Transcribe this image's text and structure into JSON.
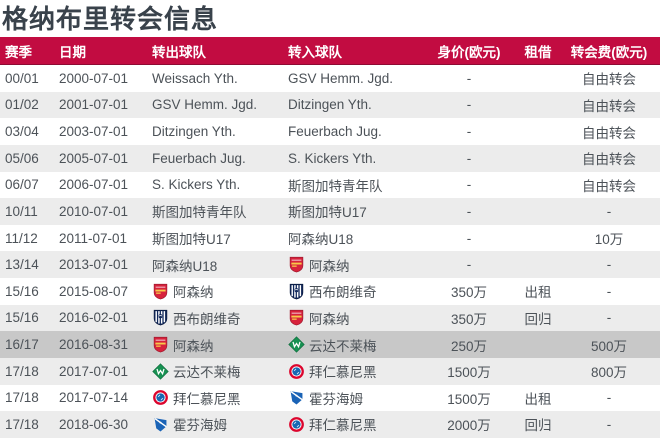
{
  "page_title": "格纳布里转会信息",
  "colors": {
    "header_bg": "#C20C41",
    "header_text": "#FFFFFF",
    "row_bg": "#FFFFFF",
    "row_alt_bg": "#ECECEC",
    "row_highlight_bg": "#C8C8C8",
    "body_text": "#4C5258",
    "title_text": "#39424B"
  },
  "table": {
    "columns": [
      {
        "key": "season",
        "label": "赛季"
      },
      {
        "key": "date",
        "label": "日期"
      },
      {
        "key": "out",
        "label": "转出球队"
      },
      {
        "key": "in",
        "label": "转入球队"
      },
      {
        "key": "value",
        "label": "身价(欧元)"
      },
      {
        "key": "loan",
        "label": "租借"
      },
      {
        "key": "fee",
        "label": "转会费(欧元)"
      }
    ],
    "rows": [
      {
        "season": "00/01",
        "date": "2000-07-01",
        "out_club": "Weissach Yth.",
        "out_logo": null,
        "in_club": "GSV Hemm. Jgd.",
        "in_logo": null,
        "value": "-",
        "loan": "",
        "fee": "自由转会",
        "highlight": false
      },
      {
        "season": "01/02",
        "date": "2001-07-01",
        "out_club": "GSV Hemm. Jgd.",
        "out_logo": null,
        "in_club": "Ditzingen Yth.",
        "in_logo": null,
        "value": "-",
        "loan": "",
        "fee": "自由转会",
        "highlight": false
      },
      {
        "season": "03/04",
        "date": "2003-07-01",
        "out_club": "Ditzingen Yth.",
        "out_logo": null,
        "in_club": "Feuerbach Jug.",
        "in_logo": null,
        "value": "-",
        "loan": "",
        "fee": "自由转会",
        "highlight": false
      },
      {
        "season": "05/06",
        "date": "2005-07-01",
        "out_club": "Feuerbach Jug.",
        "out_logo": null,
        "in_club": "S. Kickers Yth.",
        "in_logo": null,
        "value": "-",
        "loan": "",
        "fee": "自由转会",
        "highlight": false
      },
      {
        "season": "06/07",
        "date": "2006-07-01",
        "out_club": "S. Kickers Yth.",
        "out_logo": null,
        "in_club": "斯图加特青年队",
        "in_logo": null,
        "value": "-",
        "loan": "",
        "fee": "自由转会",
        "highlight": false
      },
      {
        "season": "10/11",
        "date": "2010-07-01",
        "out_club": "斯图加特青年队",
        "out_logo": null,
        "in_club": "斯图加特U17",
        "in_logo": null,
        "value": "-",
        "loan": "",
        "fee": "-",
        "highlight": false
      },
      {
        "season": "11/12",
        "date": "2011-07-01",
        "out_club": "斯图加特U17",
        "out_logo": null,
        "in_club": "阿森纳U18",
        "in_logo": null,
        "value": "-",
        "loan": "",
        "fee": "10万",
        "highlight": false
      },
      {
        "season": "13/14",
        "date": "2013-07-01",
        "out_club": "阿森纳U18",
        "out_logo": null,
        "in_club": "阿森纳",
        "in_logo": "arsenal-crest-icon",
        "value": "-",
        "loan": "",
        "fee": "-",
        "highlight": false
      },
      {
        "season": "15/16",
        "date": "2015-08-07",
        "out_club": "阿森纳",
        "out_logo": "arsenal-crest-icon",
        "in_club": "西布朗维奇",
        "in_logo": "west-brom-crest-icon",
        "value": "350万",
        "loan": "出租",
        "fee": "-",
        "highlight": false
      },
      {
        "season": "15/16",
        "date": "2016-02-01",
        "out_club": "西布朗维奇",
        "out_logo": "west-brom-crest-icon",
        "in_club": "阿森纳",
        "in_logo": "arsenal-crest-icon",
        "value": "350万",
        "loan": "回归",
        "fee": "-",
        "highlight": false
      },
      {
        "season": "16/17",
        "date": "2016-08-31",
        "out_club": "阿森纳",
        "out_logo": "arsenal-crest-icon",
        "in_club": "云达不莱梅",
        "in_logo": "werder-bremen-crest-icon",
        "value": "250万",
        "loan": "",
        "fee": "500万",
        "highlight": true
      },
      {
        "season": "17/18",
        "date": "2017-07-01",
        "out_club": "云达不莱梅",
        "out_logo": "werder-bremen-crest-icon",
        "in_club": "拜仁慕尼黑",
        "in_logo": "bayern-crest-icon",
        "value": "1500万",
        "loan": "",
        "fee": "800万",
        "highlight": false
      },
      {
        "season": "17/18",
        "date": "2017-07-14",
        "out_club": "拜仁慕尼黑",
        "out_logo": "bayern-crest-icon",
        "in_club": "霍芬海姆",
        "in_logo": "hoffenheim-crest-icon",
        "value": "1500万",
        "loan": "出租",
        "fee": "-",
        "highlight": false
      },
      {
        "season": "17/18",
        "date": "2018-06-30",
        "out_club": "霍芬海姆",
        "out_logo": "hoffenheim-crest-icon",
        "in_club": "拜仁慕尼黑",
        "in_logo": "bayern-crest-icon",
        "value": "2000万",
        "loan": "回归",
        "fee": "-",
        "highlight": false
      }
    ]
  }
}
